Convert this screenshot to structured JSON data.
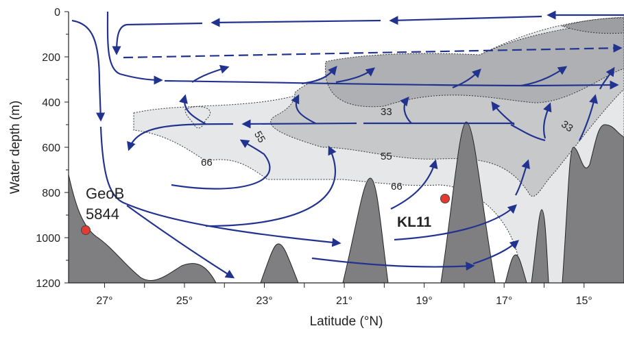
{
  "axes": {
    "x_label": "Latitude (°N)",
    "y_label": "Water depth (m)",
    "xlim": [
      27.9,
      14.0
    ],
    "ylim": [
      0,
      1200
    ],
    "xticks": [
      {
        "value": 27,
        "label": "27°"
      },
      {
        "value": 25,
        "label": "25°"
      },
      {
        "value": 23,
        "label": "23°"
      },
      {
        "value": 21,
        "label": "21°"
      },
      {
        "value": 19,
        "label": "19°"
      },
      {
        "value": 17,
        "label": "17°"
      },
      {
        "value": 15,
        "label": "15°"
      }
    ],
    "yticks": [
      0,
      200,
      400,
      600,
      800,
      1000,
      1200
    ]
  },
  "contour_labels": [
    "33",
    "33",
    "55",
    "55",
    "66",
    "66"
  ],
  "sites": [
    {
      "label_lines": [
        "GeoB",
        "5844"
      ]
    },
    {
      "label_lines": [
        "KL11"
      ]
    }
  ]
}
